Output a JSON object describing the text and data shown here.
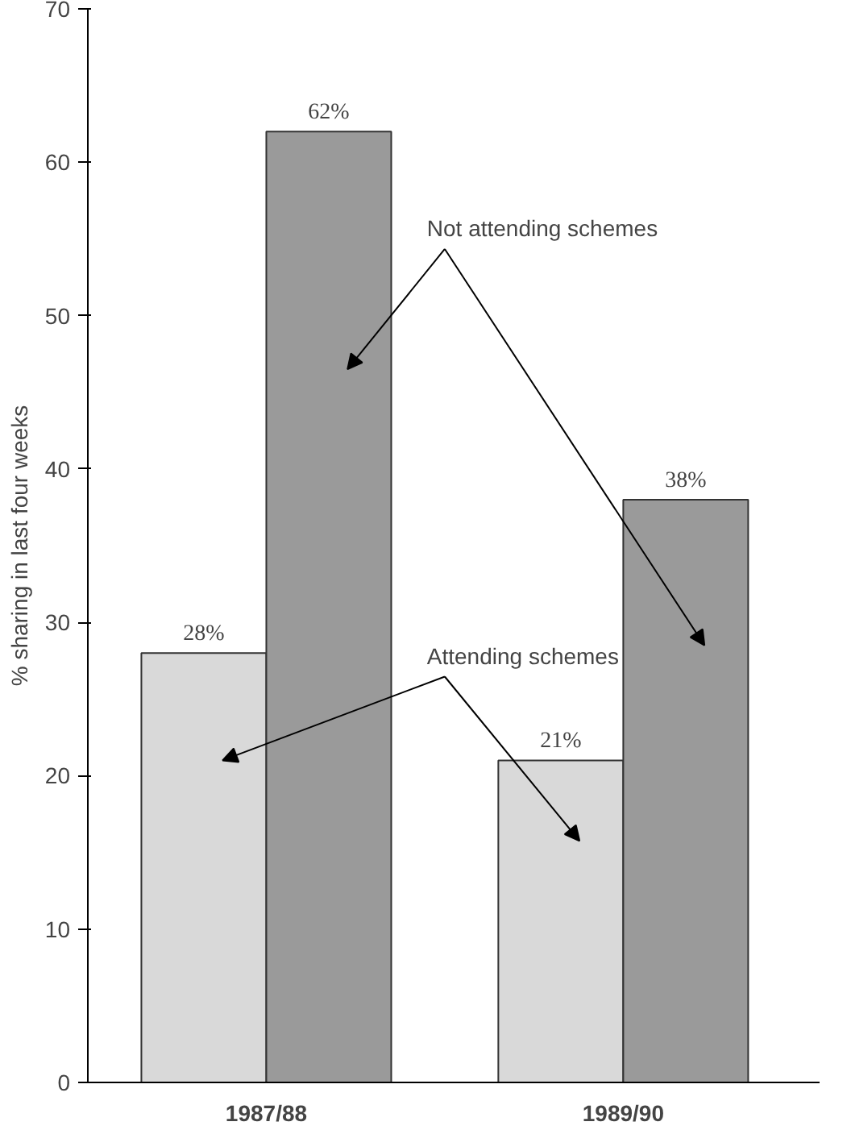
{
  "chart_data": {
    "type": "bar",
    "categories": [
      "1987/88",
      "1989/90"
    ],
    "series": [
      {
        "name": "Attending schemes",
        "color": "#d9d9d9",
        "values": [
          28,
          21
        ],
        "value_labels": [
          "28%",
          "21%"
        ]
      },
      {
        "name": "Not attending schemes",
        "color": "#9a9a9a",
        "values": [
          62,
          38
        ],
        "value_labels": [
          "62%",
          "38%"
        ]
      }
    ],
    "ylabel": "% sharing in last four weeks",
    "ylim": [
      0,
      70
    ],
    "yticks": [
      0,
      10,
      20,
      30,
      40,
      50,
      60,
      70
    ],
    "grid": false,
    "legend": false
  }
}
